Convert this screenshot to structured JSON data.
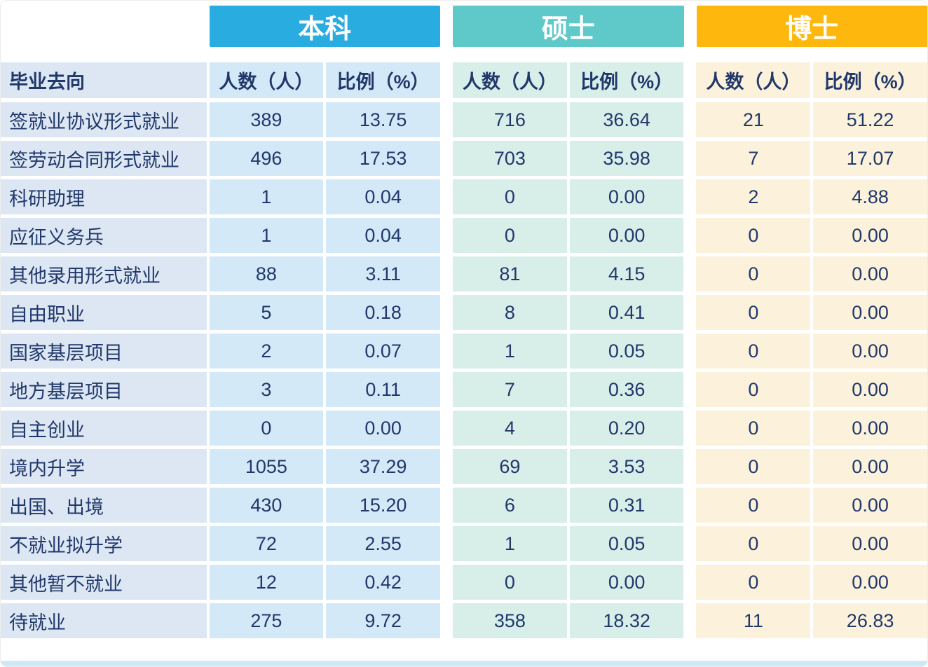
{
  "chart_data": {
    "type": "table",
    "row_header": "毕业去向",
    "column_groups": [
      {
        "label": "本科",
        "header_color": "#29ACDF",
        "column_bg": "#D4E9F8"
      },
      {
        "label": "硕士",
        "header_color": "#5FC8C9",
        "column_bg": "#D8EEE9"
      },
      {
        "label": "博士",
        "header_color": "#FDB70D",
        "column_bg": "#FCF2DC"
      }
    ],
    "sub_columns": [
      "人数（人）",
      "比例（%）"
    ],
    "rows": [
      {
        "label": "签就业协议形式就业",
        "values": [
          "389",
          "13.75",
          "716",
          "36.64",
          "21",
          "51.22"
        ]
      },
      {
        "label": "签劳动合同形式就业",
        "values": [
          "496",
          "17.53",
          "703",
          "35.98",
          "7",
          "17.07"
        ]
      },
      {
        "label": "科研助理",
        "values": [
          "1",
          "0.04",
          "0",
          "0.00",
          "2",
          "4.88"
        ]
      },
      {
        "label": "应征义务兵",
        "values": [
          "1",
          "0.04",
          "0",
          "0.00",
          "0",
          "0.00"
        ]
      },
      {
        "label": "其他录用形式就业",
        "values": [
          "88",
          "3.11",
          "81",
          "4.15",
          "0",
          "0.00"
        ]
      },
      {
        "label": "自由职业",
        "values": [
          "5",
          "0.18",
          "8",
          "0.41",
          "0",
          "0.00"
        ]
      },
      {
        "label": "国家基层项目",
        "values": [
          "2",
          "0.07",
          "1",
          "0.05",
          "0",
          "0.00"
        ]
      },
      {
        "label": "地方基层项目",
        "values": [
          "3",
          "0.11",
          "7",
          "0.36",
          "0",
          "0.00"
        ]
      },
      {
        "label": "自主创业",
        "values": [
          "0",
          "0.00",
          "4",
          "0.20",
          "0",
          "0.00"
        ]
      },
      {
        "label": "境内升学",
        "values": [
          "1055",
          "37.29",
          "69",
          "3.53",
          "0",
          "0.00"
        ]
      },
      {
        "label": "出国、出境",
        "values": [
          "430",
          "15.20",
          "6",
          "0.31",
          "0",
          "0.00"
        ]
      },
      {
        "label": "不就业拟升学",
        "values": [
          "72",
          "2.55",
          "1",
          "0.05",
          "0",
          "0.00"
        ]
      },
      {
        "label": "其他暂不就业",
        "values": [
          "12",
          "0.42",
          "0",
          "0.00",
          "0",
          "0.00"
        ]
      },
      {
        "label": "待就业",
        "values": [
          "275",
          "9.72",
          "358",
          "18.32",
          "11",
          "26.83"
        ]
      }
    ]
  },
  "colors": {
    "label_column_bg": "#DCE7F3",
    "text": "#21386B",
    "bottom_bar": "#CDE8F7"
  }
}
